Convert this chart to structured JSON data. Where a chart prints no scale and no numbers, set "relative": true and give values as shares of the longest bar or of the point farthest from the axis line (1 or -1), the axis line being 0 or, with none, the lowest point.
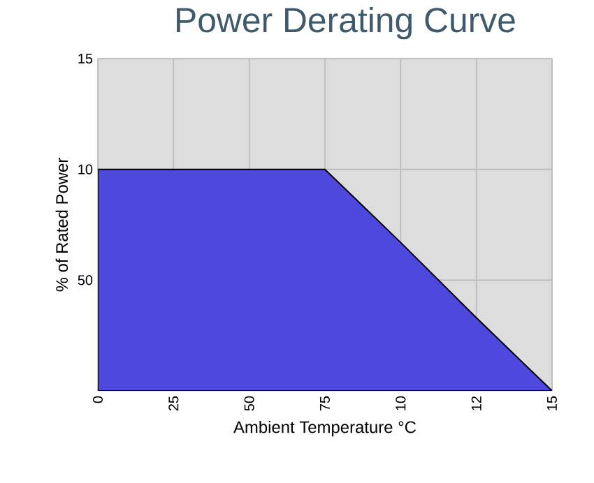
{
  "chart_data": {
    "type": "area",
    "title": "Power Derating Curve",
    "xlabel": "Ambient Temperature °C",
    "ylabel": "% of Rated Power",
    "categories": [
      "0",
      "25",
      "50",
      "75",
      "10",
      "12",
      "15"
    ],
    "values": [
      1,
      1,
      1,
      1,
      0.67,
      0.33,
      0
    ],
    "relative": true,
    "color": "#4f48dc",
    "annotations": [
      "15",
      "10",
      "50"
    ],
    "grid": true
  }
}
